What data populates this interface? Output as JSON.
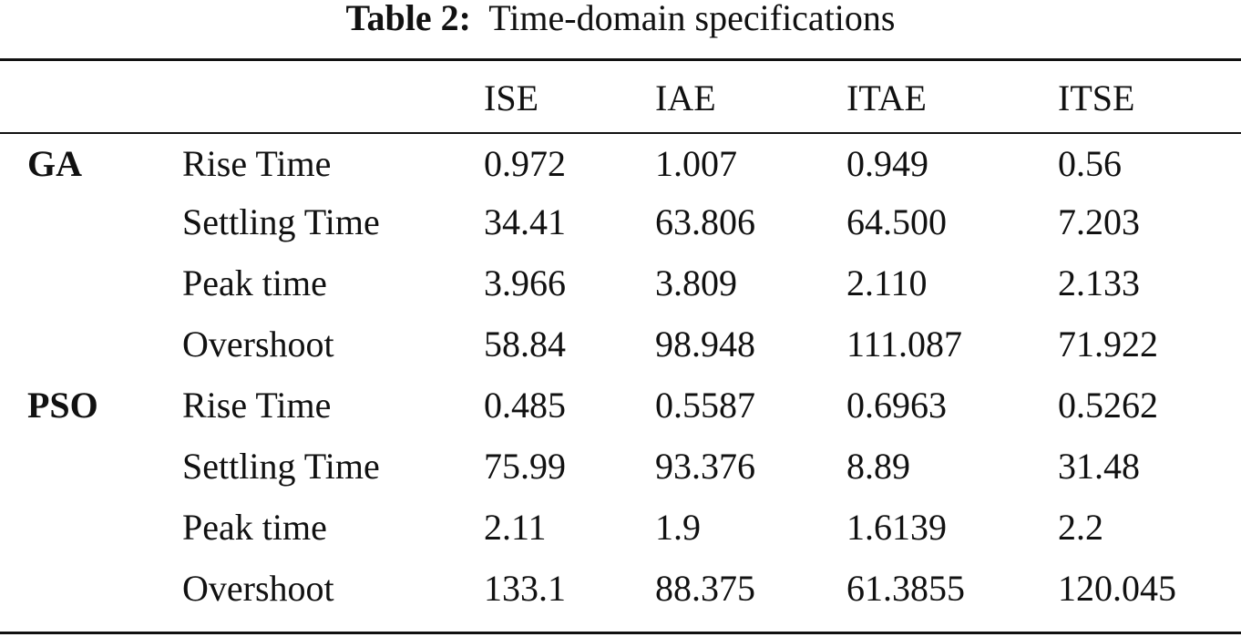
{
  "caption": {
    "label": "Table 2:",
    "text": "Time-domain specifications"
  },
  "table": {
    "headers": [
      "",
      "",
      "ISE",
      "IAE",
      "ITAE",
      "ITSE"
    ],
    "rows": [
      {
        "group": "GA",
        "metric": "Rise Time",
        "values": [
          "0.972",
          "1.007",
          "0.949",
          "0.56"
        ]
      },
      {
        "group": "",
        "metric": "Settling Time",
        "values": [
          "34.41",
          "63.806",
          "64.500",
          "7.203"
        ]
      },
      {
        "group": "",
        "metric": "Peak time",
        "values": [
          "3.966",
          "3.809",
          "2.110",
          "2.133"
        ]
      },
      {
        "group": "",
        "metric": "Overshoot",
        "values": [
          "58.84",
          "98.948",
          "111.087",
          "71.922"
        ]
      },
      {
        "group": "PSO",
        "metric": "Rise Time",
        "values": [
          "0.485",
          "0.5587",
          "0.6963",
          "0.5262"
        ]
      },
      {
        "group": "",
        "metric": "Settling Time",
        "values": [
          "75.99",
          "93.376",
          "8.89",
          "31.48"
        ]
      },
      {
        "group": "",
        "metric": "Peak time",
        "values": [
          "2.11",
          "1.9",
          "1.6139",
          "2.2"
        ]
      },
      {
        "group": "",
        "metric": "Overshoot",
        "values": [
          "133.1",
          "88.375",
          "61.3855",
          "120.045"
        ]
      }
    ]
  }
}
